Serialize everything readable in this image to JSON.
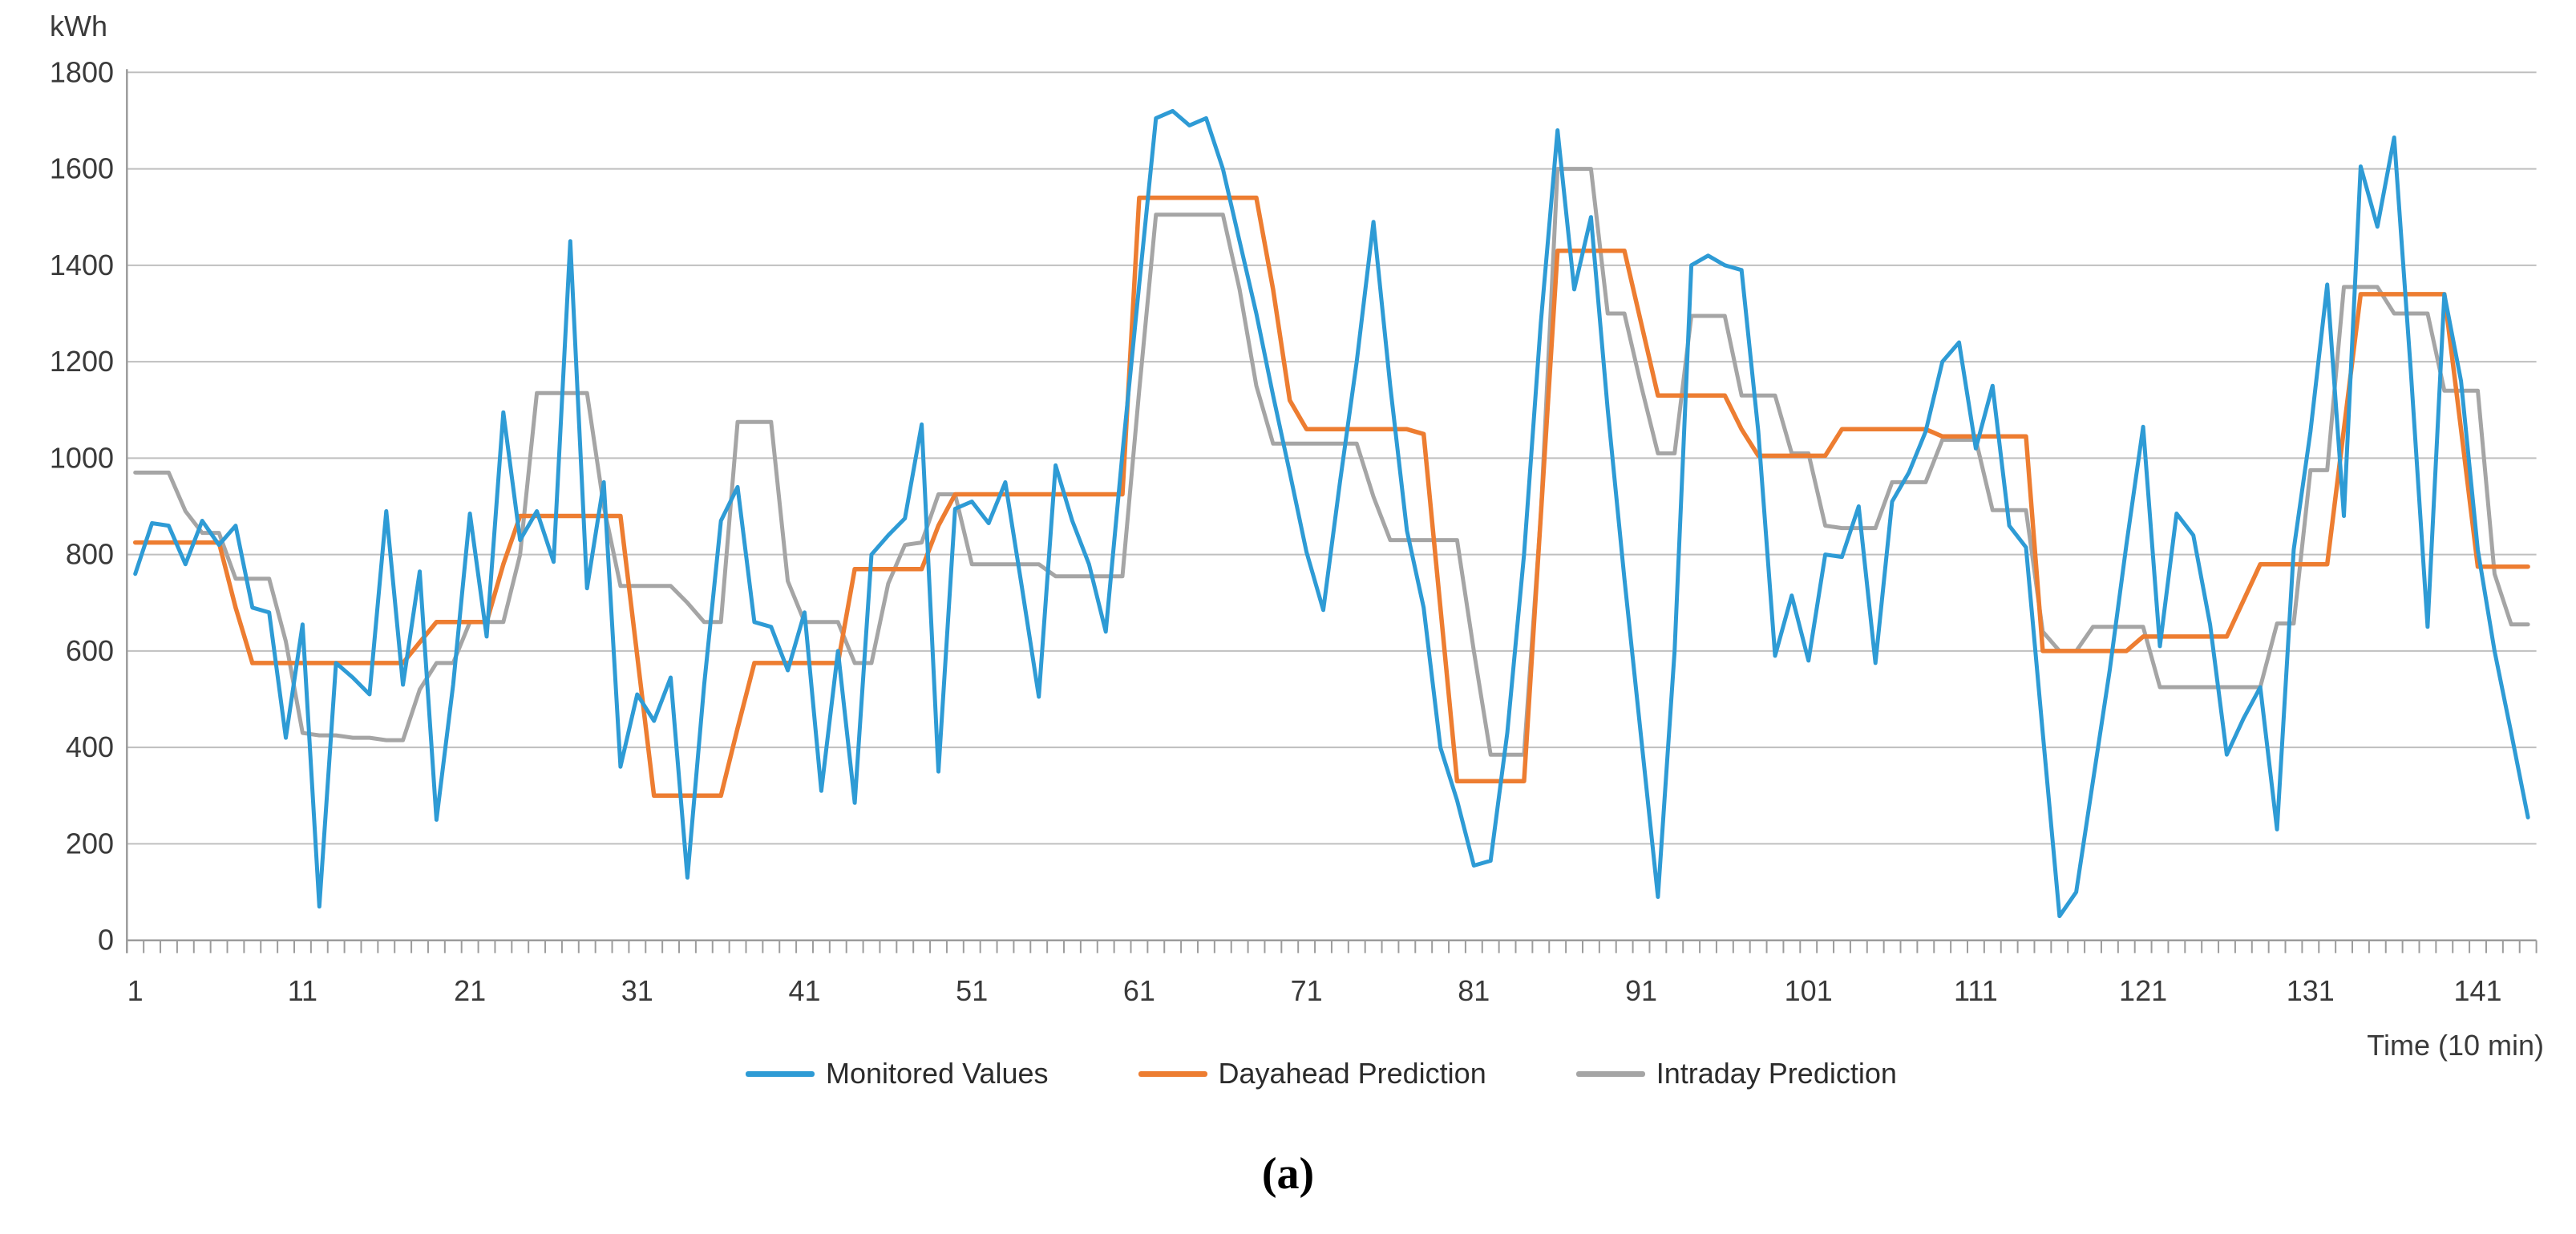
{
  "unit_label": "kWh",
  "x_axis_label": "Time  (10 min)",
  "caption": "(a)",
  "colors": {
    "monitored": "#2E9BD5",
    "dayahead": "#ED7D31",
    "intraday": "#A5A5A5",
    "gridline": "#BFBFBF",
    "axis": "#9C9C9C",
    "text": "#404040"
  },
  "chart_data": {
    "type": "line",
    "title": "",
    "xlabel": "Time (10 min)",
    "ylabel": "kWh",
    "ylim": [
      0,
      1800
    ],
    "y_ticks": [
      0,
      200,
      400,
      600,
      800,
      1000,
      1200,
      1400,
      1600,
      1800
    ],
    "x_tick_labels": [
      1,
      11,
      21,
      31,
      41,
      51,
      61,
      71,
      81,
      91,
      101,
      111,
      121,
      131,
      141
    ],
    "x_range": [
      1,
      144
    ],
    "grid": true,
    "legend_position": "bottom",
    "series": [
      {
        "name": "Monitored Values",
        "color": "#2E9BD5",
        "values": [
          760,
          865,
          860,
          780,
          870,
          820,
          860,
          690,
          680,
          420,
          655,
          70,
          575,
          545,
          510,
          890,
          530,
          765,
          250,
          530,
          885,
          630,
          1095,
          830,
          890,
          785,
          1450,
          730,
          950,
          360,
          510,
          455,
          545,
          130,
          530,
          870,
          940,
          660,
          650,
          560,
          680,
          310,
          600,
          285,
          800,
          840,
          875,
          1070,
          350,
          895,
          910,
          865,
          950,
          730,
          505,
          985,
          870,
          780,
          640,
          1010,
          1360,
          1705,
          1720,
          1690,
          1705,
          1600,
          1450,
          1300,
          1130,
          970,
          805,
          685,
          950,
          1200,
          1490,
          1150,
          850,
          690,
          400,
          290,
          155,
          165,
          430,
          800,
          1280,
          1680,
          1350,
          1500,
          1100,
          750,
          420,
          90,
          600,
          1400,
          1420,
          1400,
          1390,
          1055,
          590,
          715,
          580,
          800,
          795,
          900,
          575,
          910,
          970,
          1055,
          1200,
          1240,
          1020,
          1150,
          860,
          815,
          430,
          50,
          100,
          330,
          560,
          820,
          1065,
          610,
          885,
          840,
          655,
          385,
          460,
          525,
          230,
          810,
          1055,
          1360,
          880,
          1605,
          1480,
          1665,
          1180,
          650,
          1340,
          1160,
          810,
          600,
          430,
          255
        ]
      },
      {
        "name": "Dayahead Prediction",
        "color": "#ED7D31",
        "values": [
          825,
          825,
          825,
          825,
          825,
          825,
          690,
          575,
          575,
          575,
          575,
          575,
          575,
          575,
          575,
          575,
          575,
          618,
          660,
          660,
          660,
          660,
          780,
          880,
          880,
          880,
          880,
          880,
          880,
          880,
          590,
          300,
          300,
          300,
          300,
          300,
          440,
          575,
          575,
          575,
          575,
          575,
          575,
          770,
          770,
          770,
          770,
          770,
          860,
          925,
          925,
          925,
          925,
          925,
          925,
          925,
          925,
          925,
          925,
          925,
          1540,
          1540,
          1540,
          1540,
          1540,
          1540,
          1540,
          1540,
          1350,
          1120,
          1060,
          1060,
          1060,
          1060,
          1060,
          1060,
          1060,
          1050,
          690,
          330,
          330,
          330,
          330,
          330,
          880,
          1430,
          1430,
          1430,
          1430,
          1430,
          1280,
          1130,
          1130,
          1130,
          1130,
          1130,
          1060,
          1005,
          1005,
          1005,
          1005,
          1005,
          1060,
          1060,
          1060,
          1060,
          1060,
          1060,
          1045,
          1045,
          1045,
          1045,
          1045,
          1045,
          600,
          600,
          600,
          600,
          600,
          600,
          630,
          630,
          630,
          630,
          630,
          630,
          705,
          780,
          780,
          780,
          780,
          780,
          1060,
          1340,
          1340,
          1340,
          1340,
          1340,
          1340,
          1060,
          775,
          775,
          775,
          775
        ]
      },
      {
        "name": "Intraday Prediction",
        "color": "#A5A5A5",
        "values": [
          970,
          970,
          970,
          890,
          845,
          845,
          750,
          750,
          750,
          620,
          430,
          425,
          425,
          420,
          420,
          415,
          415,
          520,
          575,
          575,
          660,
          660,
          660,
          800,
          1135,
          1135,
          1135,
          1135,
          900,
          735,
          735,
          735,
          735,
          700,
          660,
          660,
          1075,
          1075,
          1075,
          745,
          660,
          660,
          660,
          575,
          575,
          740,
          820,
          825,
          925,
          925,
          780,
          780,
          780,
          780,
          780,
          755,
          755,
          755,
          755,
          755,
          1140,
          1505,
          1505,
          1505,
          1505,
          1505,
          1350,
          1150,
          1030,
          1030,
          1030,
          1030,
          1030,
          1030,
          920,
          830,
          830,
          830,
          830,
          830,
          600,
          385,
          385,
          385,
          880,
          1600,
          1600,
          1600,
          1300,
          1300,
          1150,
          1010,
          1010,
          1295,
          1295,
          1295,
          1130,
          1130,
          1130,
          1010,
          1010,
          860,
          855,
          855,
          855,
          950,
          950,
          950,
          1038,
          1038,
          1038,
          892,
          892,
          892,
          640,
          600,
          600,
          650,
          650,
          650,
          650,
          525,
          525,
          525,
          525,
          525,
          525,
          525,
          657,
          657,
          975,
          975,
          1355,
          1355,
          1355,
          1300,
          1300,
          1300,
          1140,
          1140,
          1140,
          760,
          655,
          655
        ]
      }
    ]
  },
  "legend": [
    {
      "label": "Monitored Values",
      "color": "#2E9BD5"
    },
    {
      "label": "Dayahead Prediction",
      "color": "#ED7D31"
    },
    {
      "label": "Intraday Prediction",
      "color": "#A5A5A5"
    }
  ]
}
